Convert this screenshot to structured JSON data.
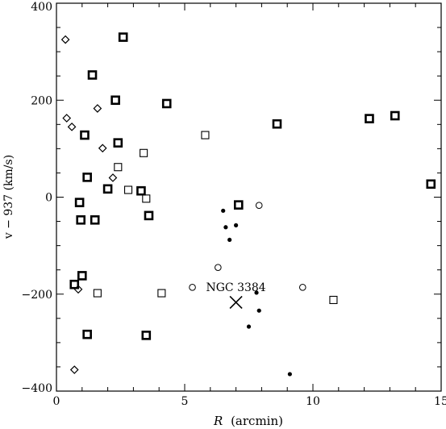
{
  "chart_data": {
    "type": "scatter",
    "xlabel_var": "R",
    "xlabel_unit": "(arcmin)",
    "ylabel": "v − 937 (km/s)",
    "xlim": [
      0,
      15
    ],
    "ylim": [
      -400,
      400
    ],
    "xticks": [
      0,
      5,
      10,
      15
    ],
    "yticks": [
      -400,
      -200,
      0,
      200,
      400
    ],
    "grid": false,
    "annotations": [
      {
        "text": "NGC 3384",
        "marker": "cross",
        "x": 7.0,
        "y": -217
      }
    ],
    "series": [
      {
        "marker": "bold-square",
        "points": [
          [
            2.6,
            330
          ],
          [
            1.4,
            252
          ],
          [
            4.3,
            193
          ],
          [
            2.3,
            200
          ],
          [
            8.6,
            151
          ],
          [
            12.2,
            162
          ],
          [
            13.2,
            168
          ],
          [
            14.6,
            27
          ],
          [
            1.1,
            128
          ],
          [
            2.4,
            112
          ],
          [
            1.2,
            41
          ],
          [
            2.0,
            17
          ],
          [
            3.3,
            13
          ],
          [
            0.9,
            -11
          ],
          [
            7.1,
            -16
          ],
          [
            3.6,
            -38
          ],
          [
            0.95,
            -47
          ],
          [
            1.5,
            -47
          ],
          [
            1.0,
            -162
          ],
          [
            0.7,
            -180
          ],
          [
            1.2,
            -283
          ],
          [
            3.5,
            -285
          ]
        ]
      },
      {
        "marker": "open-square",
        "points": [
          [
            5.8,
            128
          ],
          [
            3.4,
            91
          ],
          [
            2.4,
            62
          ],
          [
            2.8,
            15
          ],
          [
            3.5,
            -3
          ],
          [
            1.6,
            -198
          ],
          [
            4.1,
            -198
          ],
          [
            10.8,
            -212
          ]
        ]
      },
      {
        "marker": "diamond",
        "points": [
          [
            0.35,
            325
          ],
          [
            1.6,
            183
          ],
          [
            0.4,
            163
          ],
          [
            0.6,
            145
          ],
          [
            1.8,
            101
          ],
          [
            2.2,
            40
          ],
          [
            0.85,
            -190
          ],
          [
            0.7,
            -356
          ]
        ]
      },
      {
        "marker": "open-circle",
        "points": [
          [
            7.9,
            -17
          ],
          [
            6.3,
            -145
          ],
          [
            5.3,
            -186
          ],
          [
            9.6,
            -186
          ]
        ]
      },
      {
        "marker": "filled-dot",
        "points": [
          [
            6.5,
            -28
          ],
          [
            7.0,
            -58
          ],
          [
            6.6,
            -62
          ],
          [
            6.75,
            -88
          ],
          [
            7.8,
            -197
          ],
          [
            7.9,
            -234
          ],
          [
            7.5,
            -267
          ],
          [
            9.1,
            -365
          ]
        ]
      }
    ]
  }
}
